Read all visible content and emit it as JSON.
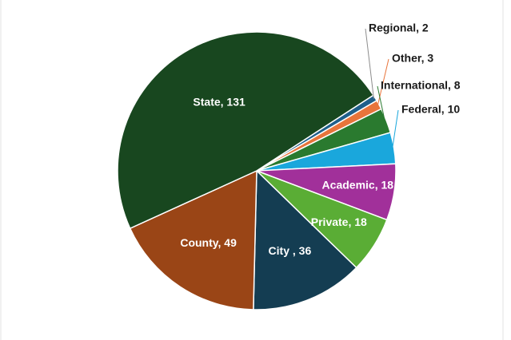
{
  "chart_data": {
    "type": "pie",
    "title": "",
    "legend": "none",
    "slices": [
      {
        "label": "Regional, 2",
        "category": "Regional",
        "value": 2,
        "color": "#1f5f8b",
        "placement": "outside"
      },
      {
        "label": "Other, 3",
        "category": "Other",
        "value": 3,
        "color": "#e8743b",
        "placement": "outside"
      },
      {
        "label": "International, 8",
        "category": "International",
        "value": 8,
        "color": "#2a7a2f",
        "placement": "outside"
      },
      {
        "label": "Federal, 10",
        "category": "Federal",
        "value": 10,
        "color": "#1aa7dc",
        "placement": "outside"
      },
      {
        "label": "Academic, 18",
        "category": "Academic",
        "value": 18,
        "color": "#a1309a",
        "placement": "inside"
      },
      {
        "label": "Private, 18",
        "category": "Private",
        "value": 18,
        "color": "#5aad35",
        "placement": "inside"
      },
      {
        "label": "City , 36",
        "category": "City ",
        "value": 36,
        "color": "#143d52",
        "placement": "inside"
      },
      {
        "label": "County, 49",
        "category": "County",
        "value": 49,
        "color": "#9a4516",
        "placement": "inside"
      },
      {
        "label": "State, 131",
        "category": "State",
        "value": 131,
        "color": "#18471f",
        "placement": "inside"
      }
    ]
  }
}
